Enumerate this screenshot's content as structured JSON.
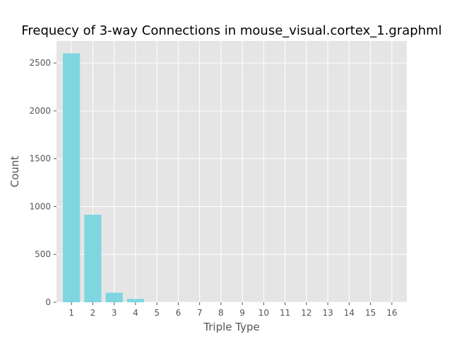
{
  "chart_data": {
    "type": "bar",
    "title": "Frequecy of 3-way Connections in mouse_visual.cortex_1.graphml",
    "xlabel": "Triple Type",
    "ylabel": "Count",
    "categories": [
      "1",
      "2",
      "3",
      "4",
      "5",
      "6",
      "7",
      "8",
      "9",
      "10",
      "11",
      "12",
      "13",
      "14",
      "15",
      "16"
    ],
    "values": [
      2600,
      915,
      100,
      35,
      0,
      0,
      0,
      0,
      0,
      0,
      0,
      0,
      0,
      0,
      0,
      0
    ],
    "ylim": [
      0,
      2730
    ],
    "yticks": [
      0,
      500,
      1000,
      1500,
      2000,
      2500
    ],
    "grid": true,
    "colors": {
      "bar": "#80d6e0",
      "plot_background": "#e5e5e5",
      "grid": "#ffffff"
    }
  }
}
